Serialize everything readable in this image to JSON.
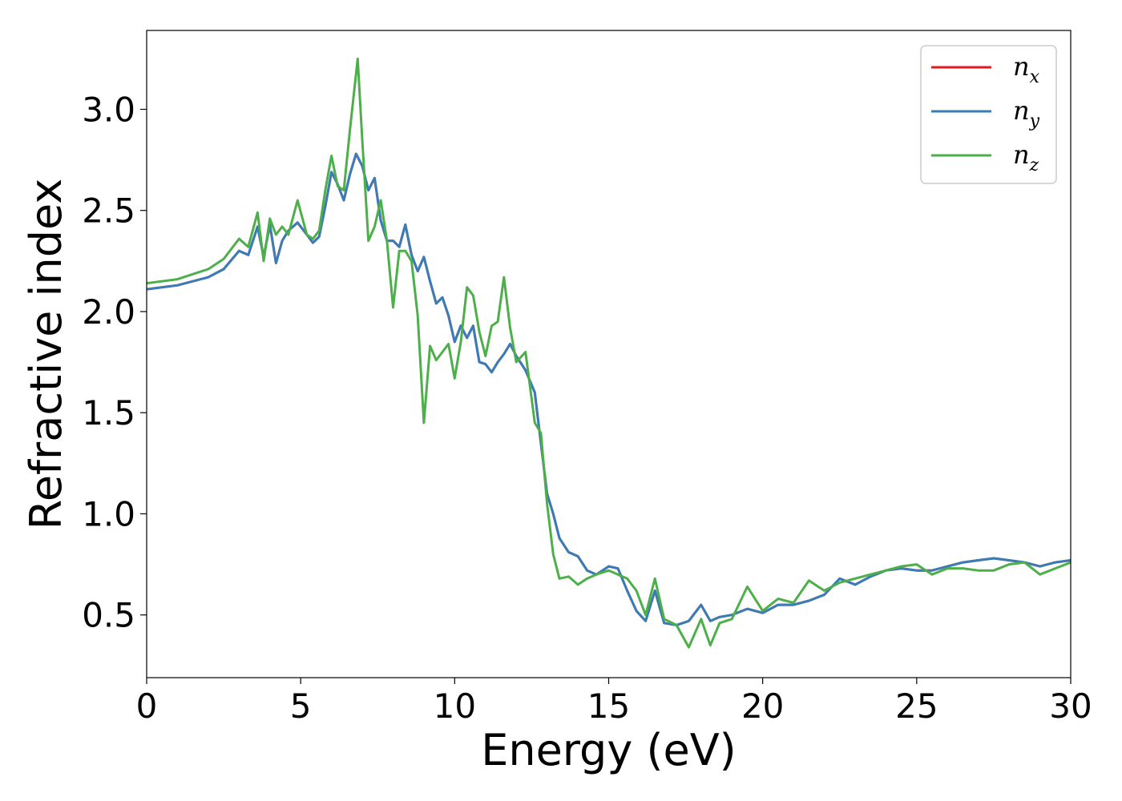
{
  "chart_data": {
    "type": "line",
    "xlabel": "Energy (eV)",
    "ylabel": "Refractive index",
    "xlim": [
      0,
      30
    ],
    "ylim": [
      0.19,
      3.39
    ],
    "xticks": [
      0,
      5,
      10,
      15,
      20,
      25,
      30
    ],
    "xtick_labels": [
      "0",
      "5",
      "10",
      "15",
      "20",
      "25",
      "30"
    ],
    "yticks": [
      0.5,
      1.0,
      1.5,
      2.0,
      2.5,
      3.0
    ],
    "ytick_labels": [
      "0.5",
      "1.0",
      "1.5",
      "2.0",
      "2.5",
      "3.0"
    ],
    "grid": false,
    "legend": "top-right",
    "series": [
      {
        "name": "n_x",
        "label_base": "n",
        "label_sub": "x",
        "color": "#e41a1c",
        "x": [
          0,
          1,
          2,
          2.5,
          3.0,
          3.3,
          3.6,
          3.8,
          4.0,
          4.2,
          4.4,
          4.6,
          4.9,
          5.2,
          5.4,
          5.6,
          5.8,
          6.0,
          6.2,
          6.4,
          6.6,
          6.8,
          7.0,
          7.2,
          7.4,
          7.6,
          7.8,
          8.0,
          8.2,
          8.4,
          8.6,
          8.8,
          9.0,
          9.2,
          9.4,
          9.6,
          9.8,
          10.0,
          10.2,
          10.4,
          10.6,
          10.8,
          11.0,
          11.2,
          11.4,
          11.6,
          11.8,
          12.0,
          12.3,
          12.6,
          12.8,
          13.0,
          13.2,
          13.4,
          13.7,
          14.0,
          14.3,
          14.6,
          15.0,
          15.3,
          15.6,
          15.9,
          16.2,
          16.5,
          16.8,
          17.2,
          17.6,
          18.0,
          18.3,
          18.6,
          19.0,
          19.5,
          20.0,
          20.5,
          21.0,
          21.5,
          22.0,
          22.5,
          23.0,
          23.5,
          24.0,
          24.5,
          25.0,
          25.5,
          26.0,
          26.5,
          27.0,
          27.5,
          28.0,
          28.5,
          29.0,
          29.5,
          30.0
        ],
        "y": [
          2.11,
          2.13,
          2.17,
          2.21,
          2.3,
          2.28,
          2.42,
          2.27,
          2.43,
          2.24,
          2.35,
          2.4,
          2.44,
          2.38,
          2.34,
          2.37,
          2.52,
          2.69,
          2.63,
          2.55,
          2.68,
          2.78,
          2.72,
          2.6,
          2.66,
          2.45,
          2.35,
          2.35,
          2.32,
          2.43,
          2.28,
          2.2,
          2.27,
          2.15,
          2.04,
          2.07,
          1.98,
          1.85,
          1.93,
          1.87,
          1.93,
          1.75,
          1.74,
          1.7,
          1.75,
          1.79,
          1.84,
          1.78,
          1.71,
          1.6,
          1.35,
          1.1,
          1.0,
          0.88,
          0.81,
          0.79,
          0.72,
          0.7,
          0.74,
          0.73,
          0.62,
          0.52,
          0.47,
          0.62,
          0.46,
          0.45,
          0.47,
          0.55,
          0.47,
          0.49,
          0.5,
          0.53,
          0.51,
          0.55,
          0.55,
          0.57,
          0.6,
          0.68,
          0.65,
          0.69,
          0.72,
          0.73,
          0.72,
          0.72,
          0.74,
          0.76,
          0.77,
          0.78,
          0.77,
          0.76,
          0.74,
          0.76,
          0.77
        ]
      },
      {
        "name": "n_y",
        "label_base": "n",
        "label_sub": "y",
        "color": "#377eb8",
        "x": [
          0,
          1,
          2,
          2.5,
          3.0,
          3.3,
          3.6,
          3.8,
          4.0,
          4.2,
          4.4,
          4.6,
          4.9,
          5.2,
          5.4,
          5.6,
          5.8,
          6.0,
          6.2,
          6.4,
          6.6,
          6.8,
          7.0,
          7.2,
          7.4,
          7.6,
          7.8,
          8.0,
          8.2,
          8.4,
          8.6,
          8.8,
          9.0,
          9.2,
          9.4,
          9.6,
          9.8,
          10.0,
          10.2,
          10.4,
          10.6,
          10.8,
          11.0,
          11.2,
          11.4,
          11.6,
          11.8,
          12.0,
          12.3,
          12.6,
          12.8,
          13.0,
          13.2,
          13.4,
          13.7,
          14.0,
          14.3,
          14.6,
          15.0,
          15.3,
          15.6,
          15.9,
          16.2,
          16.5,
          16.8,
          17.2,
          17.6,
          18.0,
          18.3,
          18.6,
          19.0,
          19.5,
          20.0,
          20.5,
          21.0,
          21.5,
          22.0,
          22.5,
          23.0,
          23.5,
          24.0,
          24.5,
          25.0,
          25.5,
          26.0,
          26.5,
          27.0,
          27.5,
          28.0,
          28.5,
          29.0,
          29.5,
          30.0
        ],
        "y": [
          2.11,
          2.13,
          2.17,
          2.21,
          2.3,
          2.28,
          2.42,
          2.27,
          2.43,
          2.24,
          2.35,
          2.4,
          2.44,
          2.38,
          2.34,
          2.37,
          2.52,
          2.69,
          2.63,
          2.55,
          2.68,
          2.78,
          2.72,
          2.6,
          2.66,
          2.45,
          2.35,
          2.35,
          2.32,
          2.43,
          2.28,
          2.2,
          2.27,
          2.15,
          2.04,
          2.07,
          1.98,
          1.85,
          1.93,
          1.87,
          1.93,
          1.75,
          1.74,
          1.7,
          1.75,
          1.79,
          1.84,
          1.78,
          1.71,
          1.6,
          1.35,
          1.1,
          1.0,
          0.88,
          0.81,
          0.79,
          0.72,
          0.7,
          0.74,
          0.73,
          0.62,
          0.52,
          0.47,
          0.62,
          0.46,
          0.45,
          0.47,
          0.55,
          0.47,
          0.49,
          0.5,
          0.53,
          0.51,
          0.55,
          0.55,
          0.57,
          0.6,
          0.68,
          0.65,
          0.69,
          0.72,
          0.73,
          0.72,
          0.72,
          0.74,
          0.76,
          0.77,
          0.78,
          0.77,
          0.76,
          0.74,
          0.76,
          0.77
        ]
      },
      {
        "name": "n_z",
        "label_base": "n",
        "label_sub": "z",
        "color": "#4daf4a",
        "x": [
          0,
          1,
          2,
          2.5,
          3.0,
          3.3,
          3.6,
          3.8,
          4.0,
          4.2,
          4.4,
          4.6,
          4.9,
          5.2,
          5.4,
          5.6,
          5.8,
          6.0,
          6.2,
          6.4,
          6.6,
          6.85,
          7.0,
          7.2,
          7.4,
          7.6,
          7.8,
          8.0,
          8.2,
          8.4,
          8.6,
          8.8,
          9.0,
          9.2,
          9.4,
          9.6,
          9.8,
          10.0,
          10.2,
          10.4,
          10.6,
          10.8,
          11.0,
          11.2,
          11.4,
          11.6,
          11.8,
          12.0,
          12.3,
          12.6,
          12.8,
          13.0,
          13.2,
          13.4,
          13.7,
          14.0,
          14.3,
          14.6,
          15.0,
          15.3,
          15.6,
          15.9,
          16.2,
          16.5,
          16.8,
          17.2,
          17.6,
          18.0,
          18.3,
          18.6,
          19.0,
          19.5,
          20.0,
          20.5,
          21.0,
          21.5,
          22.0,
          22.5,
          23.0,
          23.5,
          24.0,
          24.5,
          25.0,
          25.5,
          26.0,
          26.5,
          27.0,
          27.5,
          28.0,
          28.5,
          29.0,
          29.5,
          30.0
        ],
        "y": [
          2.14,
          2.16,
          2.21,
          2.26,
          2.36,
          2.32,
          2.49,
          2.25,
          2.46,
          2.38,
          2.42,
          2.38,
          2.55,
          2.38,
          2.36,
          2.4,
          2.6,
          2.77,
          2.62,
          2.6,
          2.9,
          3.25,
          2.85,
          2.35,
          2.42,
          2.55,
          2.35,
          2.02,
          2.3,
          2.3,
          2.25,
          1.98,
          1.45,
          1.83,
          1.76,
          1.8,
          1.84,
          1.67,
          1.85,
          2.12,
          2.08,
          1.9,
          1.78,
          1.93,
          1.95,
          2.17,
          1.92,
          1.75,
          1.8,
          1.45,
          1.4,
          1.05,
          0.8,
          0.68,
          0.69,
          0.65,
          0.68,
          0.7,
          0.72,
          0.7,
          0.68,
          0.62,
          0.5,
          0.68,
          0.48,
          0.45,
          0.34,
          0.48,
          0.35,
          0.46,
          0.48,
          0.64,
          0.52,
          0.58,
          0.56,
          0.67,
          0.62,
          0.66,
          0.68,
          0.7,
          0.72,
          0.74,
          0.75,
          0.7,
          0.73,
          0.73,
          0.72,
          0.72,
          0.75,
          0.76,
          0.7,
          0.73,
          0.76
        ]
      }
    ]
  }
}
